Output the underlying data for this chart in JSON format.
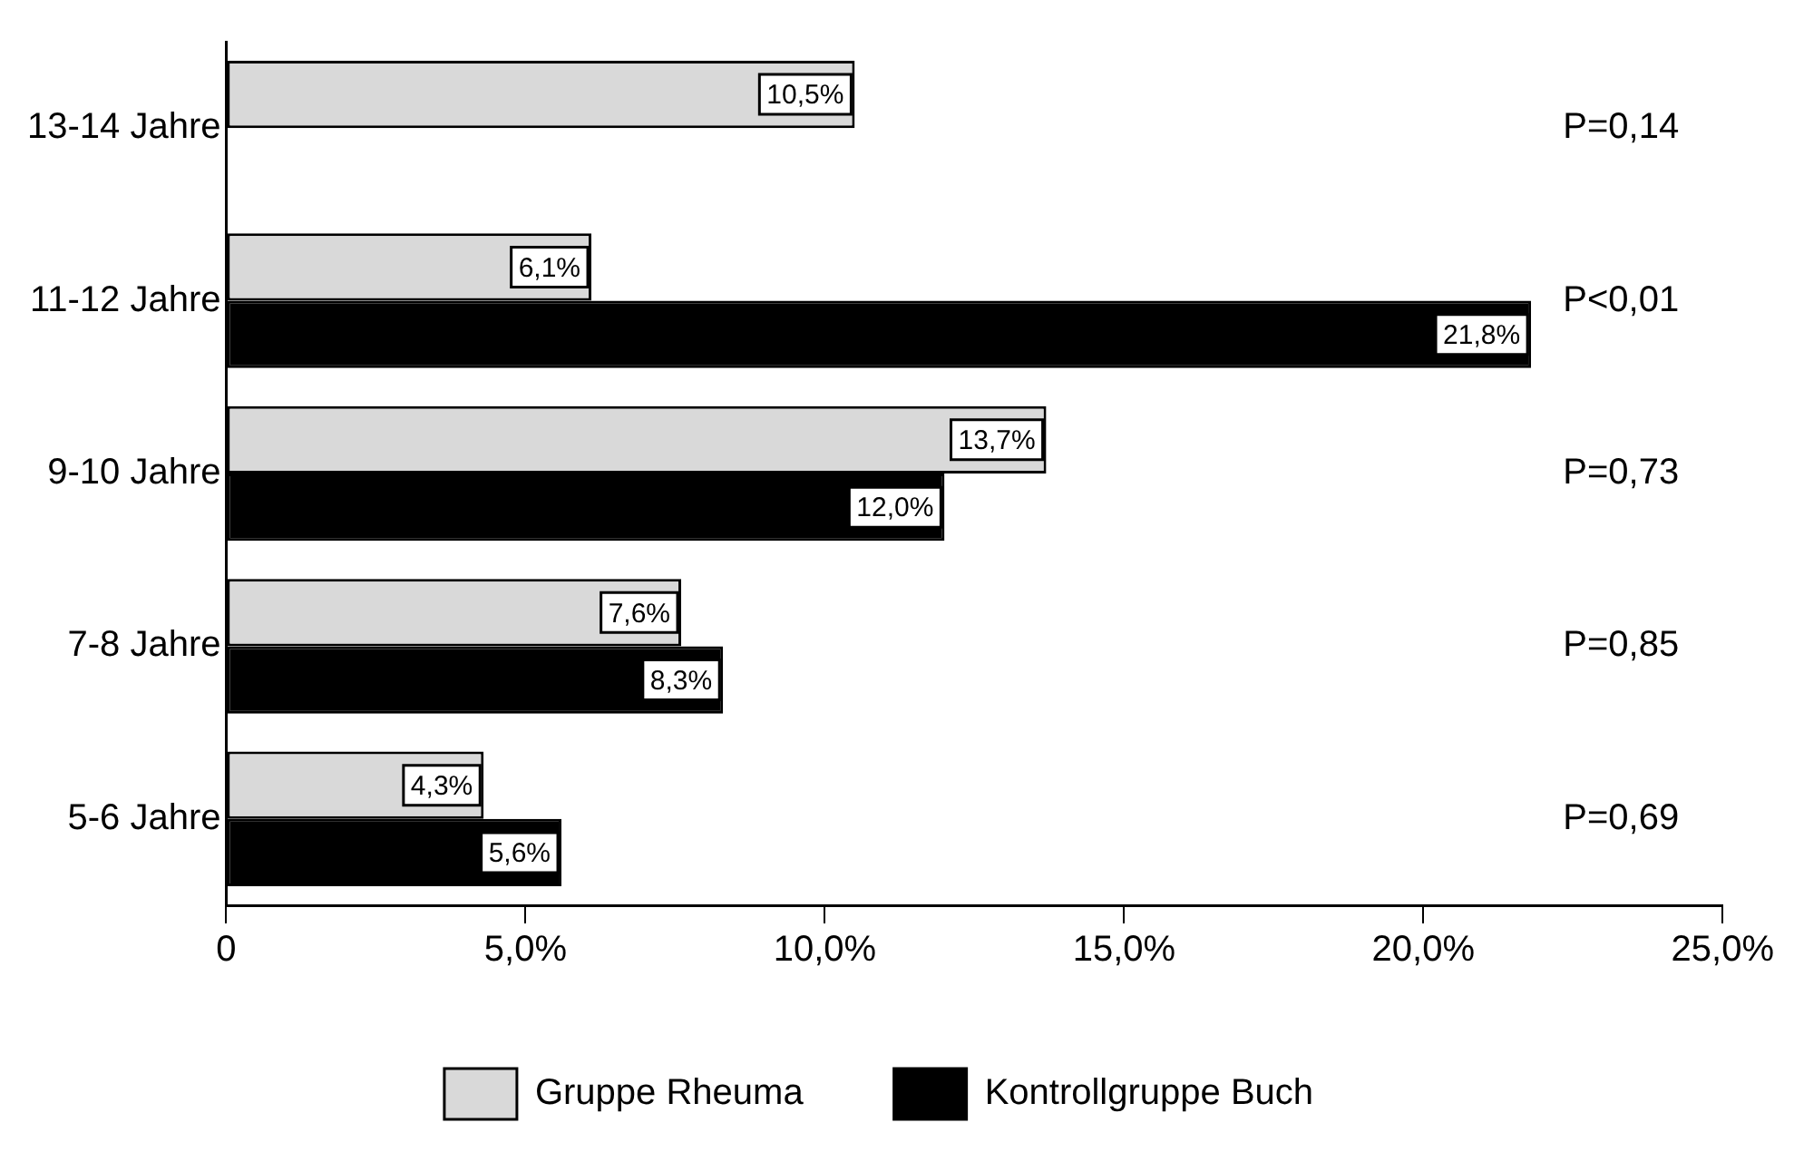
{
  "chart_data": {
    "type": "bar",
    "orientation": "horizontal",
    "categories": [
      "13-14 Jahre",
      "11-12 Jahre",
      "9-10 Jahre",
      "7-8 Jahre",
      "5-6 Jahre"
    ],
    "series": [
      {
        "name": "Gruppe Rheuma",
        "color": "#d9d9d9",
        "values": [
          10.5,
          6.1,
          13.7,
          7.6,
          4.3
        ],
        "value_labels": [
          "10,5%",
          "6,1%",
          "13,7%",
          "7,6%",
          "4,3%"
        ]
      },
      {
        "name": "Kontrollgruppe Buch",
        "color": "#000000",
        "values": [
          null,
          21.8,
          12.0,
          8.3,
          5.6
        ],
        "value_labels": [
          null,
          "21,8%",
          "12,0%",
          "8,3%",
          "5,6%"
        ]
      }
    ],
    "xlim": [
      0,
      25
    ],
    "xticks": [
      0,
      {
        "value": 5,
        "label": "5,0%"
      },
      {
        "value": 10,
        "label": "10,0%"
      },
      {
        "value": 15,
        "label": "15,0%"
      },
      {
        "value": 20,
        "label": "20,0%"
      },
      {
        "value": 25,
        "label": "25,0%"
      }
    ],
    "annotations": [
      "P=0,14",
      "P<0,01",
      "P=0,73",
      "P=0,85",
      "P=0,69"
    ],
    "grid": false,
    "legend": "bottom"
  }
}
